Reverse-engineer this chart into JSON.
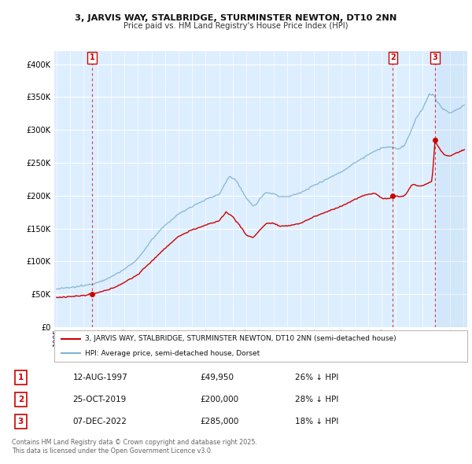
{
  "title1": "3, JARVIS WAY, STALBRIDGE, STURMINSTER NEWTON, DT10 2NN",
  "title2": "Price paid vs. HM Land Registry's House Price Index (HPI)",
  "sale_dates_dec": [
    1997.617,
    2019.813,
    2022.924
  ],
  "sale_prices": [
    49950,
    200000,
    285000
  ],
  "sale_labels": [
    "1",
    "2",
    "3"
  ],
  "table_rows": [
    [
      "1",
      "12-AUG-1997",
      "£49,950",
      "26% ↓ HPI"
    ],
    [
      "2",
      "25-OCT-2019",
      "£200,000",
      "28% ↓ HPI"
    ],
    [
      "3",
      "07-DEC-2022",
      "£285,000",
      "18% ↓ HPI"
    ]
  ],
  "legend_line1": "3, JARVIS WAY, STALBRIDGE, STURMINSTER NEWTON, DT10 2NN (semi-detached house)",
  "legend_line2": "HPI: Average price, semi-detached house, Dorset",
  "footnote": "Contains HM Land Registry data © Crown copyright and database right 2025.\nThis data is licensed under the Open Government Licence v3.0.",
  "red_color": "#cc0000",
  "blue_color": "#7fb3d3",
  "bg_color": "#ddeeff",
  "grid_color": "#ffffff",
  "ylim": [
    0,
    420000
  ],
  "yticks": [
    0,
    50000,
    100000,
    150000,
    200000,
    250000,
    300000,
    350000,
    400000
  ],
  "hpi_waypoints": [
    [
      1995.0,
      58000
    ],
    [
      1996.0,
      60000
    ],
    [
      1997.0,
      63000
    ],
    [
      1997.5,
      65000
    ],
    [
      1998.0,
      68000
    ],
    [
      1999.0,
      76000
    ],
    [
      2000.0,
      88000
    ],
    [
      2001.0,
      104000
    ],
    [
      2002.0,
      132000
    ],
    [
      2003.0,
      155000
    ],
    [
      2004.0,
      172000
    ],
    [
      2005.0,
      184000
    ],
    [
      2006.0,
      194000
    ],
    [
      2007.0,
      202000
    ],
    [
      2007.75,
      230000
    ],
    [
      2008.3,
      222000
    ],
    [
      2009.0,
      195000
    ],
    [
      2009.5,
      185000
    ],
    [
      2009.8,
      188000
    ],
    [
      2010.0,
      196000
    ],
    [
      2010.5,
      205000
    ],
    [
      2011.0,
      203000
    ],
    [
      2011.5,
      198000
    ],
    [
      2012.0,
      199000
    ],
    [
      2012.5,
      201000
    ],
    [
      2013.0,
      204000
    ],
    [
      2014.0,
      216000
    ],
    [
      2015.0,
      226000
    ],
    [
      2016.0,
      236000
    ],
    [
      2017.0,
      250000
    ],
    [
      2017.5,
      256000
    ],
    [
      2018.0,
      263000
    ],
    [
      2018.5,
      268000
    ],
    [
      2019.0,
      273000
    ],
    [
      2019.5,
      274000
    ],
    [
      2020.0,
      272000
    ],
    [
      2020.3,
      271000
    ],
    [
      2020.7,
      278000
    ],
    [
      2021.0,
      291000
    ],
    [
      2021.5,
      316000
    ],
    [
      2022.0,
      332000
    ],
    [
      2022.5,
      355000
    ],
    [
      2022.9,
      352000
    ],
    [
      2023.0,
      345000
    ],
    [
      2023.5,
      332000
    ],
    [
      2024.0,
      326000
    ],
    [
      2024.5,
      330000
    ],
    [
      2025.1,
      338000
    ]
  ],
  "red_waypoints": [
    [
      1995.0,
      45000
    ],
    [
      1996.0,
      46500
    ],
    [
      1997.0,
      48000
    ],
    [
      1997.617,
      49950
    ],
    [
      1998.0,
      52000
    ],
    [
      1999.0,
      58000
    ],
    [
      2000.0,
      68000
    ],
    [
      2001.0,
      80000
    ],
    [
      2002.0,
      100000
    ],
    [
      2003.0,
      120000
    ],
    [
      2004.0,
      138000
    ],
    [
      2005.0,
      148000
    ],
    [
      2006.0,
      155000
    ],
    [
      2007.0,
      162000
    ],
    [
      2007.5,
      175000
    ],
    [
      2008.0,
      168000
    ],
    [
      2008.5,
      155000
    ],
    [
      2009.0,
      140000
    ],
    [
      2009.5,
      136000
    ],
    [
      2010.0,
      148000
    ],
    [
      2010.5,
      158000
    ],
    [
      2011.0,
      158000
    ],
    [
      2011.5,
      153000
    ],
    [
      2012.0,
      154000
    ],
    [
      2012.5,
      156000
    ],
    [
      2013.0,
      158000
    ],
    [
      2014.0,
      168000
    ],
    [
      2015.0,
      176000
    ],
    [
      2016.0,
      184000
    ],
    [
      2017.0,
      194000
    ],
    [
      2017.5,
      199000
    ],
    [
      2018.0,
      202000
    ],
    [
      2018.5,
      204000
    ],
    [
      2019.0,
      196000
    ],
    [
      2019.5,
      195000
    ],
    [
      2019.813,
      200000
    ],
    [
      2020.0,
      200000
    ],
    [
      2020.3,
      198000
    ],
    [
      2020.7,
      200000
    ],
    [
      2021.0,
      210000
    ],
    [
      2021.3,
      218000
    ],
    [
      2021.6,
      215000
    ],
    [
      2022.0,
      215000
    ],
    [
      2022.3,
      218000
    ],
    [
      2022.7,
      222000
    ],
    [
      2022.924,
      285000
    ],
    [
      2023.0,
      280000
    ],
    [
      2023.3,
      270000
    ],
    [
      2023.6,
      262000
    ],
    [
      2024.0,
      260000
    ],
    [
      2024.5,
      265000
    ],
    [
      2025.1,
      270000
    ]
  ]
}
